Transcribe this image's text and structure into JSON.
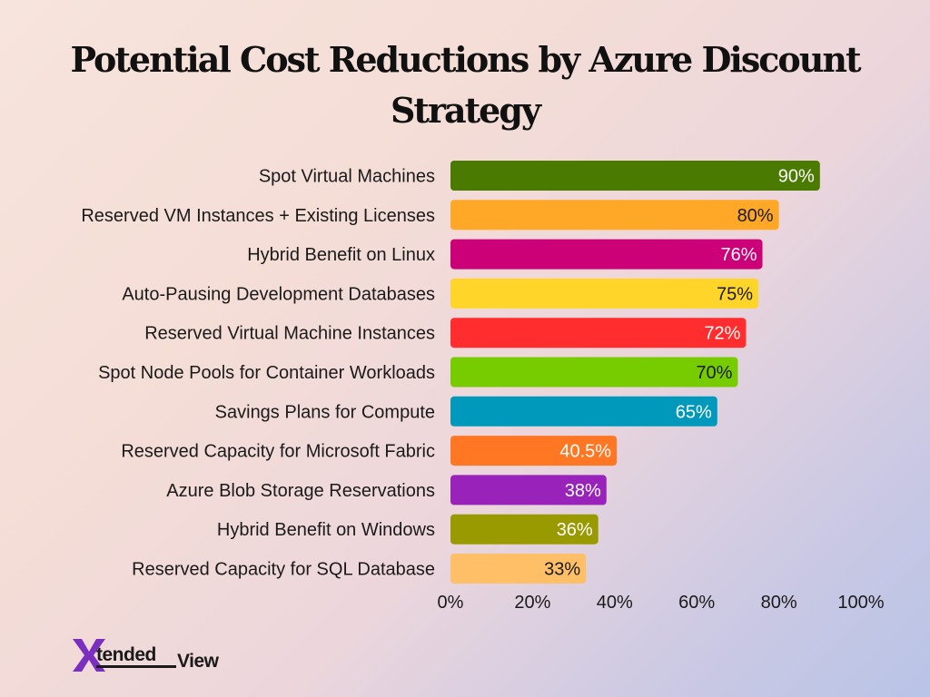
{
  "title_line1": "Potential Cost Reductions by Azure Discount",
  "title_line2": "Strategy",
  "logo": {
    "text1": "tended",
    "text2": "View",
    "mark": "X"
  },
  "colors": {
    "logo_mark": "#7b2fbe",
    "label_dark": "#1a1a1a",
    "label_light": "#ffffff"
  },
  "chart_data": {
    "type": "bar",
    "orientation": "horizontal",
    "title": "Potential Cost Reductions by Azure Discount Strategy",
    "xlabel": "",
    "ylabel": "",
    "xlim": [
      0,
      100
    ],
    "x_ticks": [
      "0%",
      "20%",
      "40%",
      "60%",
      "80%",
      "100%"
    ],
    "grid": false,
    "categories": [
      "Spot Virtual Machines",
      "Reserved VM Instances + Existing Licenses",
      "Hybrid Benefit on Linux",
      "Auto-Pausing Development Databases",
      "Reserved Virtual Machine Instances",
      "Spot Node Pools for Container Workloads",
      "Savings Plans for Compute",
      "Reserved Capacity for Microsoft Fabric",
      "Azure Blob Storage Reservations",
      "Hybrid Benefit on Windows",
      "Reserved Capacity for SQL Database"
    ],
    "values": [
      90,
      80,
      76,
      75,
      72,
      70,
      65,
      40.5,
      38,
      36,
      33
    ],
    "value_labels": [
      "90%",
      "80%",
      "76%",
      "75%",
      "72%",
      "70%",
      "65%",
      "40.5%",
      "38%",
      "36%",
      "33%"
    ],
    "bar_colors": [
      "#4a7a00",
      "#ffa828",
      "#cc0077",
      "#ffd52a",
      "#ff2d2d",
      "#77cc00",
      "#0099bb",
      "#ff7722",
      "#9922bb",
      "#999900",
      "#ffbf66"
    ],
    "label_colors": [
      "#ffffff",
      "#1a1a1a",
      "#ffffff",
      "#1a1a1a",
      "#ffffff",
      "#1a1a1a",
      "#ffffff",
      "#ffffff",
      "#ffffff",
      "#ffffff",
      "#1a1a1a"
    ]
  }
}
